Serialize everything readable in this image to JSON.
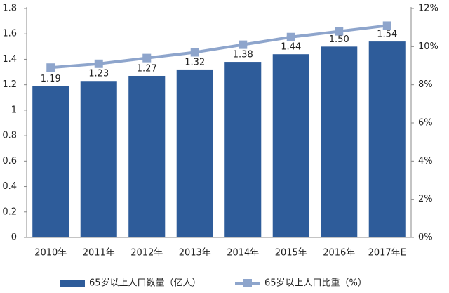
{
  "chart_data": {
    "type": "bar",
    "categories": [
      "2010年",
      "2011年",
      "2012年",
      "2013年",
      "2014年",
      "2015年",
      "2016年",
      "2017年E"
    ],
    "series": [
      {
        "name": "65岁以上人口数量（亿人）",
        "type": "bar",
        "color": "#2e5c9a",
        "values": [
          1.19,
          1.23,
          1.27,
          1.32,
          1.38,
          1.44,
          1.5,
          1.54
        ],
        "value_labels": [
          "1.19",
          "1.23",
          "1.27",
          "1.32",
          "1.38",
          "1.44",
          "1.50",
          "1.54"
        ]
      },
      {
        "name": "65岁以上人口比重（%）",
        "type": "line",
        "axis": "y2",
        "color": "#8ea5cc",
        "values": [
          8.9,
          9.1,
          9.4,
          9.7,
          10.1,
          10.5,
          10.8,
          11.1
        ]
      }
    ],
    "ylim": [
      0,
      1.8
    ],
    "yticks": [
      0,
      0.2,
      0.4,
      0.6,
      0.8,
      1,
      1.2,
      1.4,
      1.6,
      1.8
    ],
    "y2lim": [
      0,
      12
    ],
    "y2ticks": [
      {
        "value": 0,
        "label": "0%"
      },
      {
        "value": 2,
        "label": "2%"
      },
      {
        "value": 4,
        "label": "4%"
      },
      {
        "value": 6,
        "label": "6%"
      },
      {
        "value": 8,
        "label": "8%"
      },
      {
        "value": 10,
        "label": "10%"
      },
      {
        "value": 12,
        "label": "12%"
      }
    ],
    "legend": "bottom"
  }
}
